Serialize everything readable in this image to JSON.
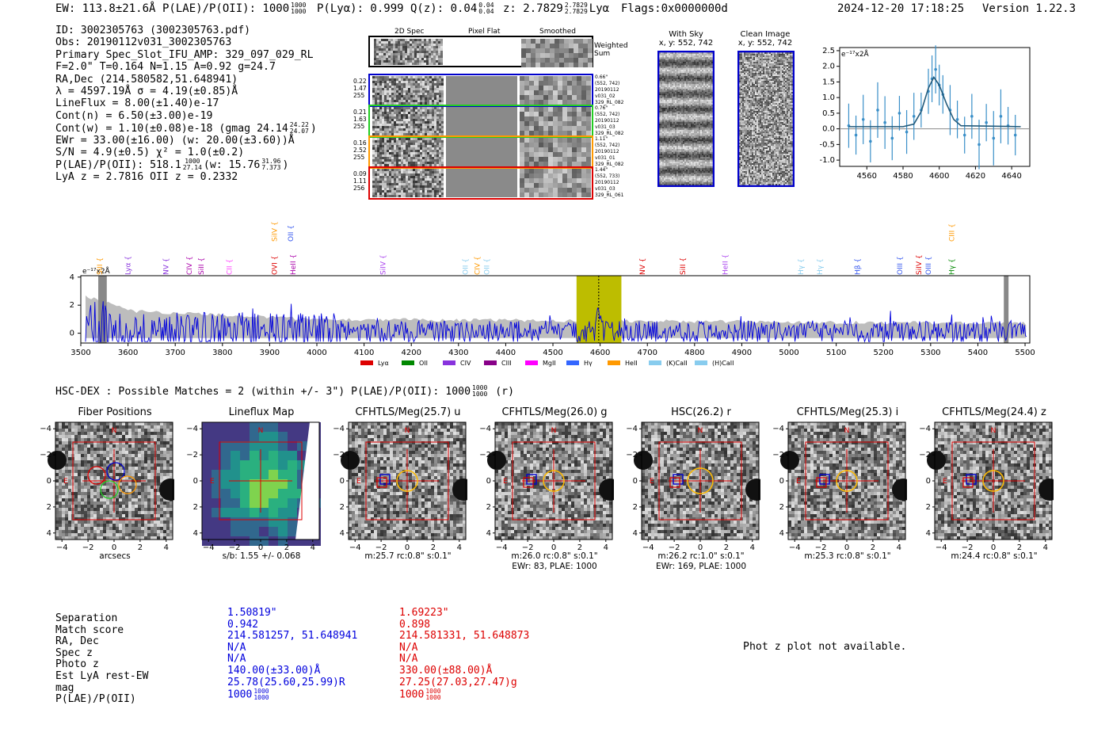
{
  "header": {
    "ew": "EW: 113.8±21.6Å",
    "plae_label": "P(LAE)/P(OII): 1000",
    "plae_hi": "1000",
    "plae_lo": "1000",
    "plya": "P(Lyα): 0.999",
    "qz": "Q(z): 0.04",
    "qz_hi": "0.04",
    "qz_lo": "0.04",
    "z": "z: 2.7829",
    "z_hi": "2.7829",
    "z_lo": "2.7829",
    "line": "Lyα",
    "flags": "Flags:0x0000000d",
    "datetime": "2024-12-20 17:18:25",
    "version": "Version 1.22.3"
  },
  "info": {
    "id": "ID: 3002305763 (3002305763.pdf)",
    "obs": "Obs: 20190112v031_3002305763",
    "primary": "Primary Spec_Slot_IFU_AMP: 329_097_029_RL",
    "params": "F=2.0\"  T=0.164  N=1.15  A=0.92  g=24.7",
    "radec": "RA,Dec (214.580582,51.648941)",
    "lambda": "λ = 4597.19Å  σ = 4.19(±0.85)Å",
    "lineflux": "LineFlux = 8.00(±1.40)e-17",
    "contn": "Cont(n) = 6.50(±3.00)e-19",
    "contw": "Cont(w) = 1.10(±0.08)e-18 (gmag 24.14",
    "contw_hi": "24.22",
    "contw_lo": "24.07",
    "contw_end": ")",
    "ewr": "EWr = 33.00(±16.00) (w: 20.00(±3.60))Å",
    "sn": "S/N = 4.9(±0.5)  χ² = 1.0(±0.2)",
    "plae": "P(LAE)/P(OII): 518.1",
    "plae_hi": "1000",
    "plae_lo": "27.14",
    "plae_w": "(w: 15.76",
    "plae_w_hi": "31.96",
    "plae_w_lo": "7.373",
    "plae_w_end": ")",
    "lyaz": "LyA z = 2.7816   OII z = 0.2332"
  },
  "cutouts": {
    "col_2d": "2D Spec",
    "col_flat": "Pixel Flat",
    "col_smooth": "Smoothed",
    "weighted": "Weighted Sum",
    "rows": [
      {
        "left": [
          "0.22",
          "1.47",
          "255"
        ],
        "right": [
          "0.66\"",
          "(552, 742)",
          "20190112",
          "v031_02",
          "329_RL_082"
        ],
        "color": "#0000cc"
      },
      {
        "left": [
          "0.21",
          "1.63",
          "255"
        ],
        "right": [
          "0.76\"",
          "(552, 742)",
          "20190112",
          "v031_03",
          "329_RL_082"
        ],
        "color": "#22cc22"
      },
      {
        "left": [
          "0.16",
          "2.52",
          "255"
        ],
        "right": [
          "1.11\"",
          "(552, 742)",
          "20190112",
          "v031_01",
          "329_RL_082"
        ],
        "color": "#ff9900"
      },
      {
        "left": [
          "0.09",
          "1.11",
          "256"
        ],
        "right": [
          "1.44\"",
          "(552, 733)",
          "20190112",
          "v031_03",
          "329_RL_061"
        ],
        "color": "#dd0000"
      }
    ]
  },
  "sky": {
    "with_sky": "With Sky",
    "with_sky_xy": "x, y: 552, 742",
    "clean": "Clean Image",
    "clean_xy": "x, y: 552, 742"
  },
  "fit_plot": {
    "ylabel": "e⁻¹⁷x2Å",
    "xticks": [
      "4560",
      "4580",
      "4600",
      "4620",
      "4640"
    ],
    "yticks": [
      "2.5",
      "2.0",
      "1.5",
      "1.0",
      "0.5",
      "0.0",
      "-0.5",
      "-1.0"
    ]
  },
  "spectrum": {
    "ylabel": "e⁻¹⁷x2Å",
    "yticks": [
      "4",
      "2",
      "0"
    ],
    "xticks": [
      "3500",
      "3600",
      "3700",
      "3800",
      "3900",
      "4000",
      "4100",
      "4200",
      "4300",
      "4400",
      "4500",
      "4600",
      "4700",
      "4800",
      "4900",
      "5000",
      "5100",
      "5200",
      "5300",
      "5400",
      "5500"
    ],
    "line_labels": [
      {
        "text": "SiII",
        "x": 3545,
        "row": 2,
        "color": "#ff9900"
      },
      {
        "text": "Lyα",
        "x": 3605,
        "row": 2,
        "color": "#8833dd"
      },
      {
        "text": "NV",
        "x": 3685,
        "row": 2,
        "color": "#8833dd"
      },
      {
        "text": "CIV",
        "x": 3735,
        "row": 2,
        "color": "#aa00aa"
      },
      {
        "text": "SiII",
        "x": 3760,
        "row": 2,
        "color": "#aa00aa"
      },
      {
        "text": "CII",
        "x": 3820,
        "row": 2,
        "color": "#ff44ff"
      },
      {
        "text": "OVI",
        "x": 3915,
        "row": 2,
        "color": "#dd0000"
      },
      {
        "text": "HeII",
        "x": 3955,
        "row": 2,
        "color": "#aa00aa"
      },
      {
        "text": "SiIV",
        "x": 3915,
        "row": 1,
        "color": "#ff9900"
      },
      {
        "text": "OII",
        "x": 3950,
        "row": 1,
        "color": "#3355ee"
      },
      {
        "text": "SiIV",
        "x": 4145,
        "row": 2,
        "color": "#aa44ee"
      },
      {
        "text": "OII",
        "x": 4320,
        "row": 2,
        "color": "#88ccee"
      },
      {
        "text": "CIV",
        "x": 4345,
        "row": 2,
        "color": "#ff9900"
      },
      {
        "text": "OII",
        "x": 4365,
        "row": 2,
        "color": "#88ccee"
      },
      {
        "text": "NV",
        "x": 4695,
        "row": 2,
        "color": "#dd0000"
      },
      {
        "text": "SiII",
        "x": 4780,
        "row": 2,
        "color": "#dd0000"
      },
      {
        "text": "HeII",
        "x": 4870,
        "row": 2,
        "color": "#aa44ee"
      },
      {
        "text": "Hγ",
        "x": 5030,
        "row": 2,
        "color": "#88ccee"
      },
      {
        "text": "Hγ",
        "x": 5070,
        "row": 2,
        "color": "#88ccee"
      },
      {
        "text": "Hβ",
        "x": 5150,
        "row": 2,
        "color": "#3355ee"
      },
      {
        "text": "OIII",
        "x": 5240,
        "row": 2,
        "color": "#3355ee"
      },
      {
        "text": "SiIV",
        "x": 5280,
        "row": 2,
        "color": "#dd0000"
      },
      {
        "text": "OIII",
        "x": 5300,
        "row": 2,
        "color": "#3355ee"
      },
      {
        "text": "Hγ",
        "x": 5350,
        "row": 2,
        "color": "#008800"
      },
      {
        "text": "CIII",
        "x": 5350,
        "row": 1,
        "color": "#ff9900"
      }
    ],
    "legend": [
      {
        "label": "Lyα",
        "color": "#dd0000"
      },
      {
        "label": "OII",
        "color": "#008800"
      },
      {
        "label": "CIV",
        "color": "#8833dd"
      },
      {
        "label": "CIII",
        "color": "#880088"
      },
      {
        "label": "MgII",
        "color": "#ff00ff"
      },
      {
        "label": "Hγ",
        "color": "#3366ff"
      },
      {
        "label": "HeII",
        "color": "#ff9900"
      },
      {
        "label": "(K)CaII",
        "color": "#88ccee"
      },
      {
        "label": "(H)CaII",
        "color": "#88ccee"
      }
    ]
  },
  "hsc": {
    "title": "HSC-DEX : Possible Matches = 2 (within +/- 3\")  P(LAE)/P(OII): 1000",
    "plae_hi": "1000",
    "plae_lo": "1000",
    "suffix": "(r)"
  },
  "panels": [
    {
      "title": "Fiber Positions",
      "caption": [
        "arcsecs"
      ]
    },
    {
      "title": "Lineflux Map",
      "caption": [
        "s/b: 1.55 +/- 0.068"
      ]
    },
    {
      "title": "CFHTLS/Meg(25.7) u",
      "caption": [
        "m:25.7 rc:0.8\"  s:0.1\""
      ]
    },
    {
      "title": "CFHTLS/Meg(26.0) g",
      "caption": [
        "m:26.0 rc:0.8\"  s:0.1\"",
        "EWr: 83, PLAE: 1000"
      ]
    },
    {
      "title": "HSC(26.2) r",
      "caption": [
        "m:26.2 rc:1.0\"  s:0.1\"",
        "EWr: 169, PLAE: 1000"
      ]
    },
    {
      "title": "CFHTLS/Meg(25.3) i",
      "caption": [
        "m:25.3 rc:0.8\"  s:0.1\""
      ]
    },
    {
      "title": "CFHTLS/Meg(24.4) z",
      "caption": [
        "m:24.4 rc:0.8\"  s:0.1\""
      ]
    }
  ],
  "panel_ticks": [
    "−4",
    "−2",
    "0",
    "2",
    "4"
  ],
  "panel_yticks": [
    "4",
    "2",
    "0",
    "−2",
    "−4"
  ],
  "panel_marks": {
    "north": "N",
    "east": "E"
  },
  "match_table": {
    "labels": [
      "Separation",
      "Match score",
      "RA, Dec",
      "Spec z",
      "Photo z",
      "Est LyA rest-EW",
      "mag",
      "P(LAE)/P(OII)"
    ],
    "blue": [
      "1.50819\"",
      "0.942",
      "214.581257, 51.648941",
      "N/A",
      "N/A",
      "140.00(±33.00)Å",
      "25.78(25.60,25.99)R",
      "1000"
    ],
    "blue_frac": [
      "1000",
      "1000"
    ],
    "red": [
      "1.69223\"",
      "0.898",
      "214.581331, 51.648873",
      "N/A",
      "N/A",
      "330.00(±88.00)Å",
      "27.25(27.03,27.47)g",
      "1000"
    ],
    "red_frac": [
      "1000",
      "1000"
    ]
  },
  "photz": "Phot z plot not available.",
  "chart_data": [
    {
      "type": "line",
      "title": "",
      "xlabel": "",
      "ylabel": "e⁻¹⁷x2Å",
      "xlim": [
        4545,
        4650
      ],
      "ylim": [
        -1.2,
        2.6
      ],
      "series": [
        {
          "name": "data",
          "x": [
            4550,
            4554,
            4558,
            4562,
            4566,
            4570,
            4574,
            4578,
            4582,
            4586,
            4590,
            4594,
            4596,
            4598,
            4600,
            4602,
            4606,
            4610,
            4614,
            4618,
            4622,
            4626,
            4630,
            4634,
            4638,
            4642
          ],
          "y": [
            0.1,
            -0.2,
            0.3,
            -0.4,
            0.6,
            0.2,
            -0.3,
            0.5,
            -0.1,
            0.4,
            0.6,
            1.2,
            1.6,
            1.9,
            1.4,
            1.1,
            0.6,
            0.3,
            -0.2,
            0.4,
            -0.5,
            0.2,
            -0.3,
            0.4,
            0.1,
            -0.2
          ]
        },
        {
          "name": "fit",
          "x": [
            4550,
            4580,
            4586,
            4590,
            4594,
            4597,
            4600,
            4604,
            4608,
            4612,
            4645
          ],
          "y": [
            0.07,
            0.07,
            0.15,
            0.55,
            1.3,
            1.65,
            1.4,
            0.8,
            0.3,
            0.1,
            0.07
          ]
        }
      ],
      "xticks": [
        4560,
        4580,
        4600,
        4620,
        4640
      ],
      "yticks": [
        -1.0,
        -0.5,
        0.0,
        0.5,
        1.0,
        1.5,
        2.0,
        2.5
      ]
    },
    {
      "type": "line",
      "title": "",
      "ylabel": "e⁻¹⁷x2Å",
      "xlim": [
        3500,
        5510
      ],
      "ylim": [
        -0.7,
        4.1
      ],
      "series": [
        {
          "name": "flux",
          "color": "#0000cc"
        },
        {
          "name": "error",
          "color": "#bbbbbb"
        }
      ],
      "highlight_band": [
        4550,
        4645
      ],
      "line_marker": 4597
    }
  ]
}
